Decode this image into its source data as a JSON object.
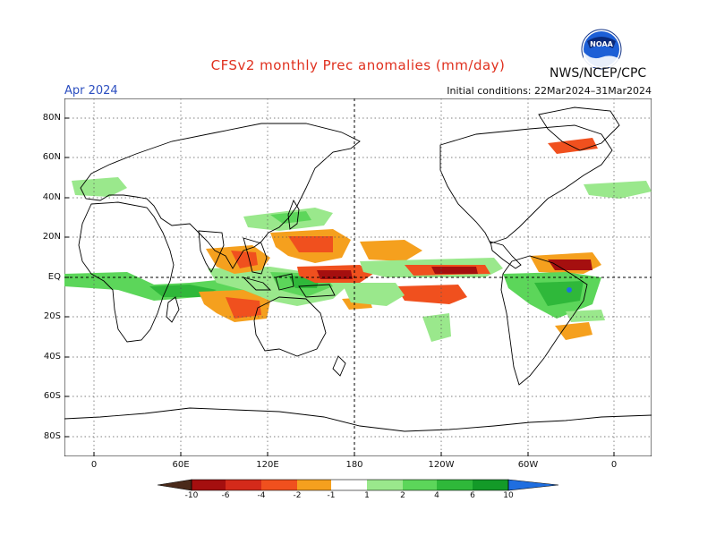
{
  "title": "CFSv2 monthly Prec anomalies (mm/day)",
  "agency": "NWS/NCEP/CPC",
  "logo_text": "NOAA",
  "month": "Apr 2024",
  "initial_conditions": "Initial conditions: 22Mar2024–31Mar2024",
  "map": {
    "lat_labels": [
      "80N",
      "60N",
      "40N",
      "20N",
      "EQ",
      "20S",
      "40S",
      "60S",
      "80S"
    ],
    "lon_labels": [
      "0",
      "60E",
      "120E",
      "180",
      "120W",
      "60W",
      "0"
    ]
  },
  "colorbar": {
    "labels": [
      "-10",
      "-6",
      "-4",
      "-2",
      "-1",
      "1",
      "2",
      "4",
      "6",
      "10"
    ],
    "colors": {
      "lt_minus10": "#4a2a1a",
      "minus10_minus6": "#a50f0f",
      "minus6_minus4": "#d42a1a",
      "minus4_minus2": "#f0501e",
      "minus2_minus1": "#f5a01e",
      "minus1_1": "#ffffff",
      "p1_p2": "#9ae88c",
      "p2_p4": "#5cd65a",
      "p4_p6": "#2fb83a",
      "p6_p10": "#139a28",
      "gt_p10": "#1f6ee0"
    }
  }
}
